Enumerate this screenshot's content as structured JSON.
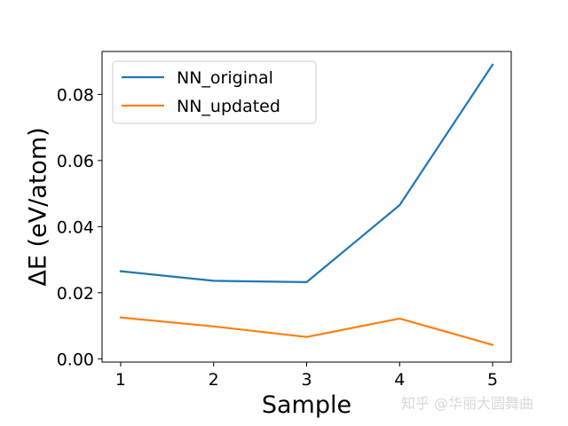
{
  "chart_data": {
    "type": "line",
    "x": [
      1,
      2,
      3,
      4,
      5
    ],
    "xlabel": "Sample",
    "ylabel": "ΔE (eV/atom)",
    "xlim": [
      0.8,
      5.2
    ],
    "ylim": [
      -0.001,
      0.093
    ],
    "xticks": [
      1,
      2,
      3,
      4,
      5
    ],
    "xtick_labels": [
      "1",
      "2",
      "3",
      "4",
      "5"
    ],
    "yticks": [
      0.0,
      0.02,
      0.04,
      0.06,
      0.08
    ],
    "ytick_labels": [
      "0.00",
      "0.02",
      "0.04",
      "0.06",
      "0.08"
    ],
    "grid": false,
    "legend_position": "top-left",
    "series": [
      {
        "name": "NN_original",
        "color": "#1f77b4",
        "values": [
          0.0265,
          0.0236,
          0.0232,
          0.0465,
          0.089
        ]
      },
      {
        "name": "NN_updated",
        "color": "#ff7f0e",
        "values": [
          0.0125,
          0.0098,
          0.0066,
          0.0122,
          0.0042
        ]
      }
    ]
  },
  "watermark": "知乎 @华丽大圆舞曲"
}
